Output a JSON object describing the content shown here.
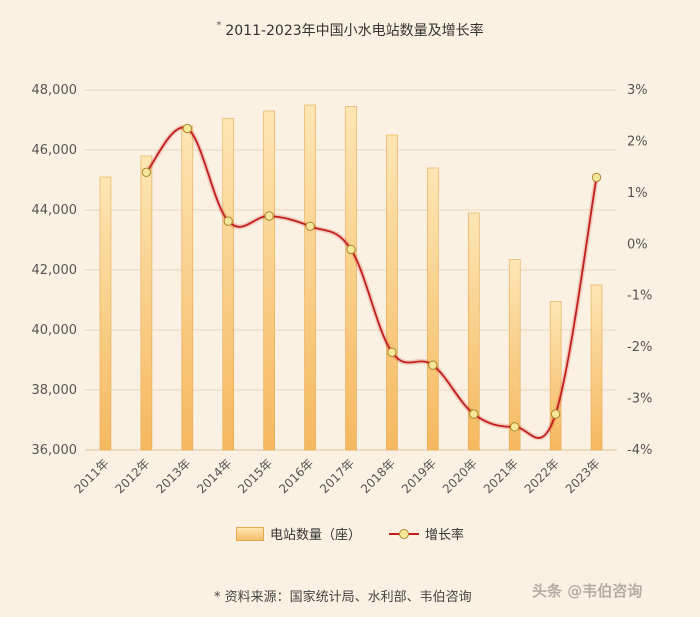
{
  "title": "2011-2023年中国小水电站数量及增长率",
  "title_marker": "*",
  "legend": {
    "bars": "电站数量（座）",
    "line": "增长率"
  },
  "source": "* 资料来源：国家统计局、水利部、韦伯咨询",
  "watermark": "头条 @韦伯咨询",
  "colors": {
    "bar_top": "#fde6b4",
    "bar_bottom": "#f5b85f",
    "bar_edge": "#e5a850",
    "line": "#c21e1e",
    "marker": "#f5e79a",
    "background": "#fbf1e2"
  },
  "chart_data": {
    "type": "bar",
    "categories": [
      "2011年",
      "2012年",
      "2013年",
      "2014年",
      "2015年",
      "2016年",
      "2017年",
      "2018年",
      "2019年",
      "2020年",
      "2021年",
      "2022年",
      "2023年"
    ],
    "series": [
      {
        "name": "电站数量（座）",
        "type": "bar",
        "axis": "left",
        "values": [
          45100,
          45800,
          46800,
          47050,
          47300,
          47500,
          47450,
          46500,
          45400,
          43900,
          42350,
          40950,
          41500
        ]
      },
      {
        "name": "增长率",
        "type": "line",
        "axis": "right",
        "unit": "%",
        "values": [
          null,
          1.4,
          2.25,
          0.45,
          0.55,
          0.35,
          -0.1,
          -2.1,
          -2.35,
          -3.3,
          -3.55,
          -3.3,
          1.3
        ]
      }
    ],
    "y_left": {
      "min": 36000,
      "max": 48000,
      "ticks": [
        "36,000",
        "38,000",
        "40,000",
        "42,000",
        "44,000",
        "46,000",
        "48,000"
      ]
    },
    "y_right": {
      "min": -4,
      "max": 3,
      "ticks": [
        "-4%",
        "-3%",
        "-2%",
        "-1%",
        "0%",
        "1%",
        "2%",
        "3%"
      ]
    },
    "grid": true,
    "legend_position": "bottom"
  }
}
